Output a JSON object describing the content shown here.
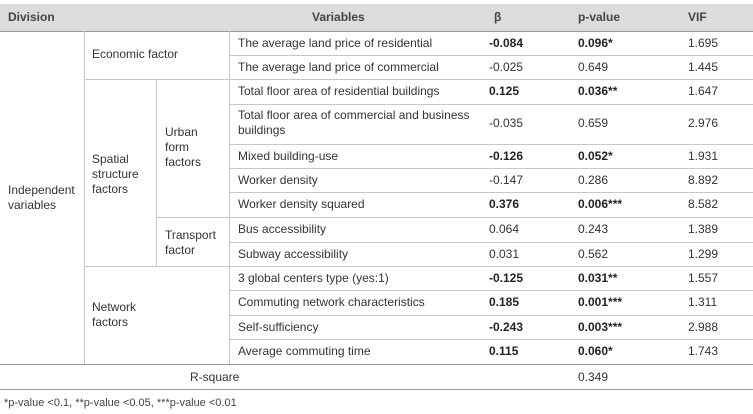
{
  "header": {
    "division": "Division",
    "variables": "Variables",
    "beta": "β",
    "pvalue": "p-value",
    "vif": "VIF"
  },
  "groups": {
    "independent": "Independent variables",
    "economic": "Economic factor",
    "spatial": "Spatial structure factors",
    "urban": "Urban form factors",
    "transport": "Transport factor",
    "network": "Network factors"
  },
  "rows": [
    {
      "variable": "The average land price of residential",
      "beta": "-0.084",
      "p": "0.096*",
      "vif": "1.695",
      "bold": true
    },
    {
      "variable": "The average land price of commercial",
      "beta": "-0.025",
      "p": "0.649",
      "vif": "1.445",
      "bold": false
    },
    {
      "variable": "Total floor area of residential buildings",
      "beta": "0.125",
      "p": "0.036**",
      "vif": "1.647",
      "bold": true
    },
    {
      "variable": "Total floor area of commercial and business buildings",
      "beta": "-0.035",
      "p": "0.659",
      "vif": "2.976",
      "bold": false
    },
    {
      "variable": "Mixed building-use",
      "beta": "-0.126",
      "p": "0.052*",
      "vif": "1.931",
      "bold": true
    },
    {
      "variable": "Worker density",
      "beta": "-0.147",
      "p": "0.286",
      "vif": "8.892",
      "bold": false
    },
    {
      "variable": "Worker density squared",
      "beta": "0.376",
      "p": "0.006***",
      "vif": "8.582",
      "bold": true
    },
    {
      "variable": "Bus accessibility",
      "beta": "0.064",
      "p": "0.243",
      "vif": "1.389",
      "bold": false
    },
    {
      "variable": "Subway accessibility",
      "beta": "0.031",
      "p": "0.562",
      "vif": "1.299",
      "bold": false
    },
    {
      "variable": "3 global centers type (yes:1)",
      "beta": "-0.125",
      "p": "0.031**",
      "vif": "1.557",
      "bold": true
    },
    {
      "variable": "Commuting network characteristics",
      "beta": "0.185",
      "p": "0.001***",
      "vif": "1.311",
      "bold": true
    },
    {
      "variable": "Self-sufficiency",
      "beta": "-0.243",
      "p": "0.003***",
      "vif": "2.988",
      "bold": true
    },
    {
      "variable": "Average commuting time",
      "beta": "0.115",
      "p": "0.060*",
      "vif": "1.743",
      "bold": true
    }
  ],
  "rsquare": {
    "label": "R-square",
    "value": "0.349"
  },
  "footnote": "*p-value <0.1, **p-value <0.05, ***p-value <0.01"
}
